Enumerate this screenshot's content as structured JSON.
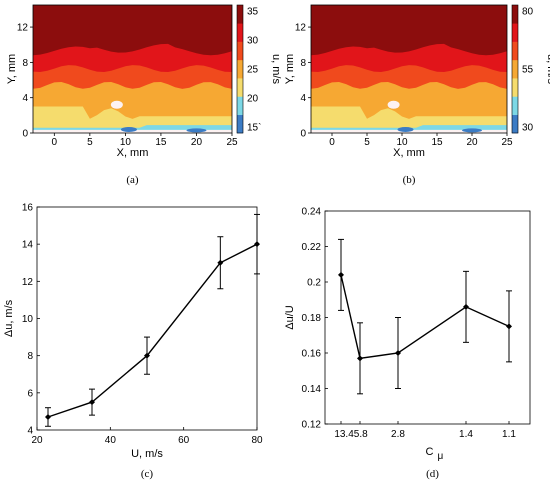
{
  "chart_data": [
    {
      "panel": "a",
      "type": "heatmap",
      "caption": "(a)",
      "xlabel": "X, mm",
      "ylabel": "Y, mm",
      "x_ticks": [
        "0",
        "5",
        "10",
        "15",
        "20",
        "25"
      ],
      "y_ticks": [
        "0",
        "4",
        "8",
        "12"
      ],
      "xlim": [
        -3,
        25
      ],
      "ylim": [
        0,
        14.5
      ],
      "colorbar": {
        "label": "u, m/s",
        "ticks": [
          "35",
          "30",
          "25",
          "20",
          "15`"
        ],
        "range": [
          13,
          35
        ]
      },
      "levels": [
        "#fdf2f2",
        "#3b7cc5",
        "#7cd8e6",
        "#f5dc6d",
        "#f6a833",
        "#f04a1d",
        "#e1151a",
        "#8c0d0d"
      ]
    },
    {
      "panel": "b",
      "type": "heatmap",
      "caption": "(b)",
      "xlabel": "X, mm",
      "ylabel": "Y, mm",
      "x_ticks": [
        "0",
        "5",
        "10",
        "15",
        "20",
        "25"
      ],
      "y_ticks": [
        "0",
        "4",
        "8",
        "12"
      ],
      "xlim": [
        -3,
        25
      ],
      "ylim": [
        0,
        14.5
      ],
      "colorbar": {
        "label": "u, m/s",
        "ticks": [
          "80",
          "55",
          "30"
        ],
        "range": [
          30,
          80
        ]
      },
      "levels": [
        "#fdf2f2",
        "#3b7cc5",
        "#7cd8e6",
        "#f5dc6d",
        "#f6a833",
        "#f04a1d",
        "#e1151a",
        "#8c0d0d"
      ]
    },
    {
      "panel": "c",
      "type": "line",
      "caption": "(c)",
      "xlabel": "U, m/s",
      "ylabel": "Δu, m/s",
      "xlim": [
        20,
        80
      ],
      "ylim": [
        4,
        16
      ],
      "x_ticks": [
        "20",
        "40",
        "60",
        "80"
      ],
      "y_ticks": [
        "4",
        "6",
        "8",
        "10",
        "12",
        "14",
        "16"
      ],
      "x": [
        23,
        35,
        50,
        70,
        80
      ],
      "y": [
        4.7,
        5.5,
        8.0,
        13.0,
        14.0
      ],
      "err": [
        0.5,
        0.7,
        1.0,
        1.4,
        1.6
      ]
    },
    {
      "panel": "d",
      "type": "line",
      "caption": "(d)",
      "xlabel": "C",
      "xlabel_sub": "μ",
      "ylabel": "Δu/U",
      "ylim": [
        0.12,
        0.24
      ],
      "x_tick_labels": [
        "13.45.8",
        "2.8",
        "1.4",
        "1.1"
      ],
      "y_ticks": [
        "0.12",
        "0.14",
        "0.16",
        "0.18",
        "0.2",
        "0.22",
        "0.24"
      ],
      "x": [
        13.4,
        5.8,
        2.8,
        1.4,
        1.1
      ],
      "y": [
        0.204,
        0.157,
        0.16,
        0.186,
        0.175
      ],
      "err": [
        0.02,
        0.02,
        0.02,
        0.02,
        0.02
      ]
    }
  ]
}
